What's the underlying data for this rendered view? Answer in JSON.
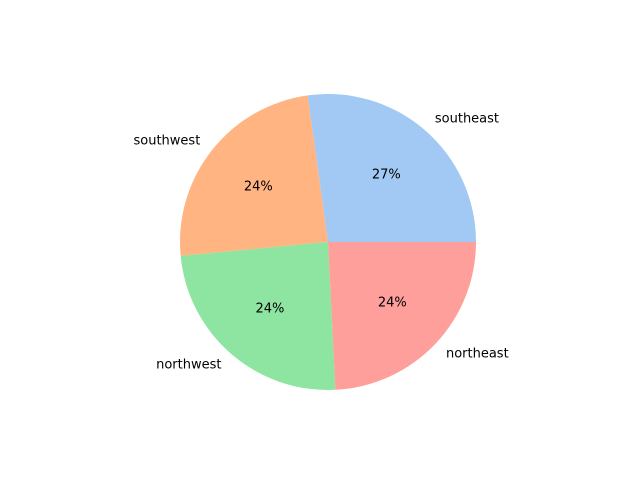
{
  "chart_data": {
    "type": "pie",
    "title": "",
    "categories": [
      "southeast",
      "southwest",
      "northwest",
      "northeast"
    ],
    "values": [
      27.2,
      24.3,
      24.3,
      24.2
    ],
    "value_labels": [
      "27%",
      "24%",
      "24%",
      "24%"
    ],
    "colors": [
      "#a1c9f4",
      "#ffb482",
      "#8de5a1",
      "#ff9f9b"
    ],
    "start_angle_deg": 0,
    "direction": "counterclockwise",
    "legend": "none"
  }
}
